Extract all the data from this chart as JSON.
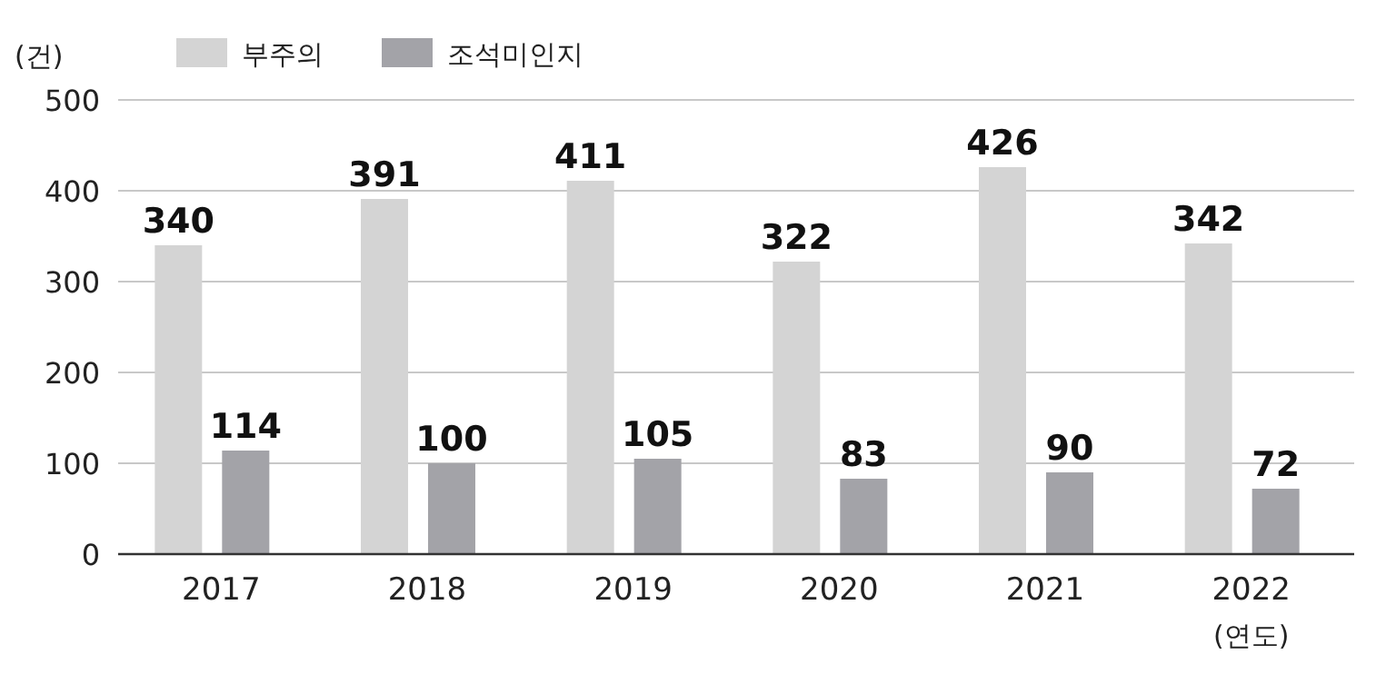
{
  "chart_data": {
    "type": "bar",
    "ylabel": "(건)",
    "xlabel": "(연도)",
    "categories": [
      "2017",
      "2018",
      "2019",
      "2020",
      "2021",
      "2022"
    ],
    "series": [
      {
        "name": "부주의",
        "color": "#d4d4d4",
        "values": [
          340,
          391,
          411,
          322,
          426,
          342
        ]
      },
      {
        "name": "조석미인지",
        "color": "#a3a3a8",
        "values": [
          114,
          100,
          105,
          83,
          90,
          72
        ]
      }
    ],
    "ylim": [
      0,
      500
    ],
    "yticks": [
      0,
      100,
      200,
      300,
      400,
      500
    ],
    "grid": "y",
    "legend": "top left",
    "data_labels": true
  }
}
